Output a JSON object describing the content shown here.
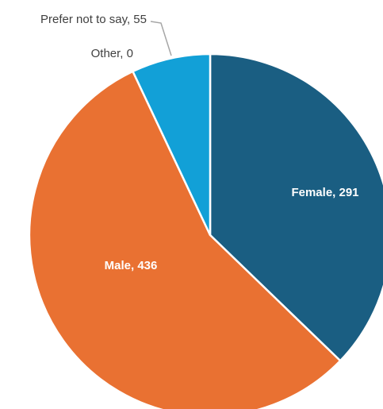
{
  "chart_data": {
    "type": "pie",
    "categories": [
      "Female",
      "Male",
      "Other",
      "Prefer not to say"
    ],
    "values": [
      291,
      436,
      0,
      55
    ],
    "value_labels": [
      "Female, 291",
      "Male, 436",
      "Other, 0",
      "Prefer not to say, 55"
    ],
    "colors": [
      "#1a5e82",
      "#e97132",
      "#196b24",
      "#12a0d7"
    ]
  }
}
